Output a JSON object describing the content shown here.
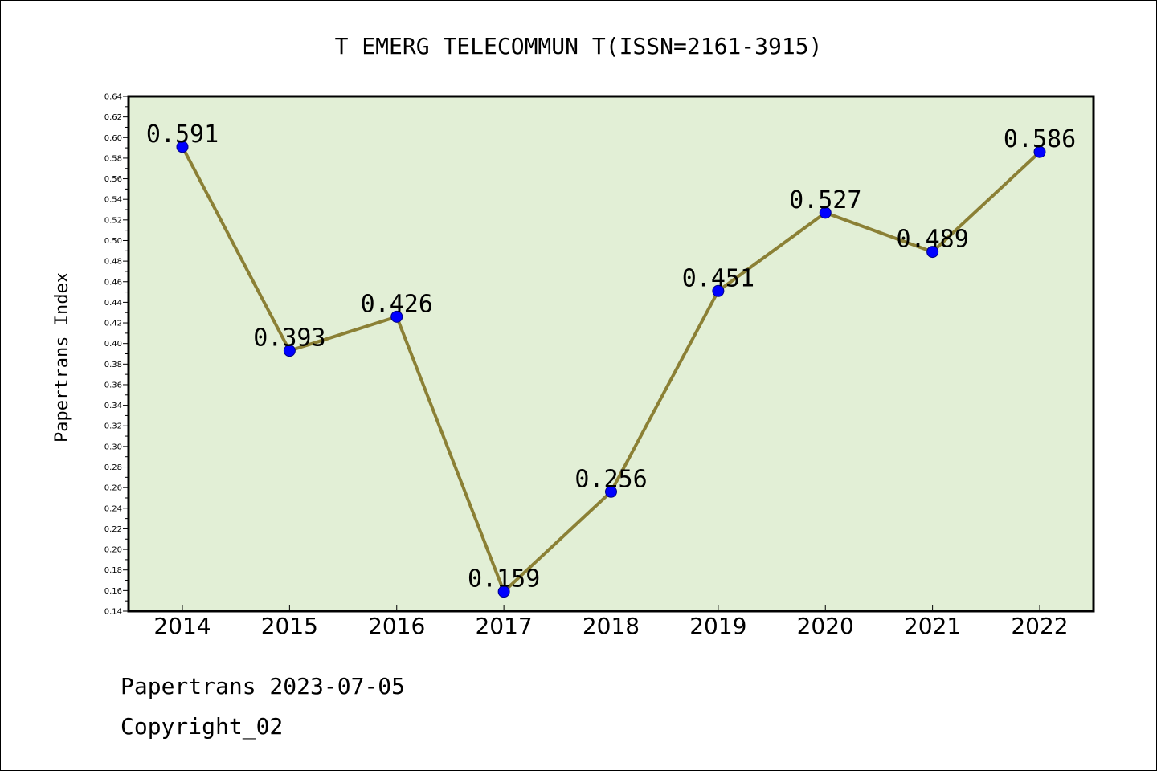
{
  "chart_data": {
    "type": "line",
    "title": "T EMERG TELECOMMUN T(ISSN=2161-3915)",
    "xlabel": "",
    "ylabel": "Papertrans Index",
    "categories": [
      "2014",
      "2015",
      "2016",
      "2017",
      "2018",
      "2019",
      "2020",
      "2021",
      "2022"
    ],
    "series": [
      {
        "values": [
          0.591,
          0.393,
          0.426,
          0.159,
          0.256,
          0.451,
          0.527,
          0.489,
          0.586
        ],
        "labels": [
          "0.591",
          "0.393",
          "0.426",
          "0.159",
          "0.256",
          "0.451",
          "0.527",
          "0.489",
          "0.586"
        ],
        "line_color": "#8b8035",
        "marker_color": "#0000ff"
      }
    ],
    "ylim": [
      0.14,
      0.64
    ],
    "yticks": [
      "0.14",
      "0.16",
      "0.18",
      "0.20",
      "0.22",
      "0.24",
      "0.26",
      "0.28",
      "0.30",
      "0.32",
      "0.34",
      "0.36",
      "0.38",
      "0.40",
      "0.42",
      "0.44",
      "0.46",
      "0.48",
      "0.50",
      "0.52",
      "0.54",
      "0.56",
      "0.58",
      "0.60",
      "0.62",
      "0.64"
    ],
    "grid": false,
    "legend": "none",
    "plot_background": "#e2efd6"
  },
  "footer": {
    "date_line": "Papertrans 2023-07-05",
    "copyright": "Copyright_02"
  }
}
